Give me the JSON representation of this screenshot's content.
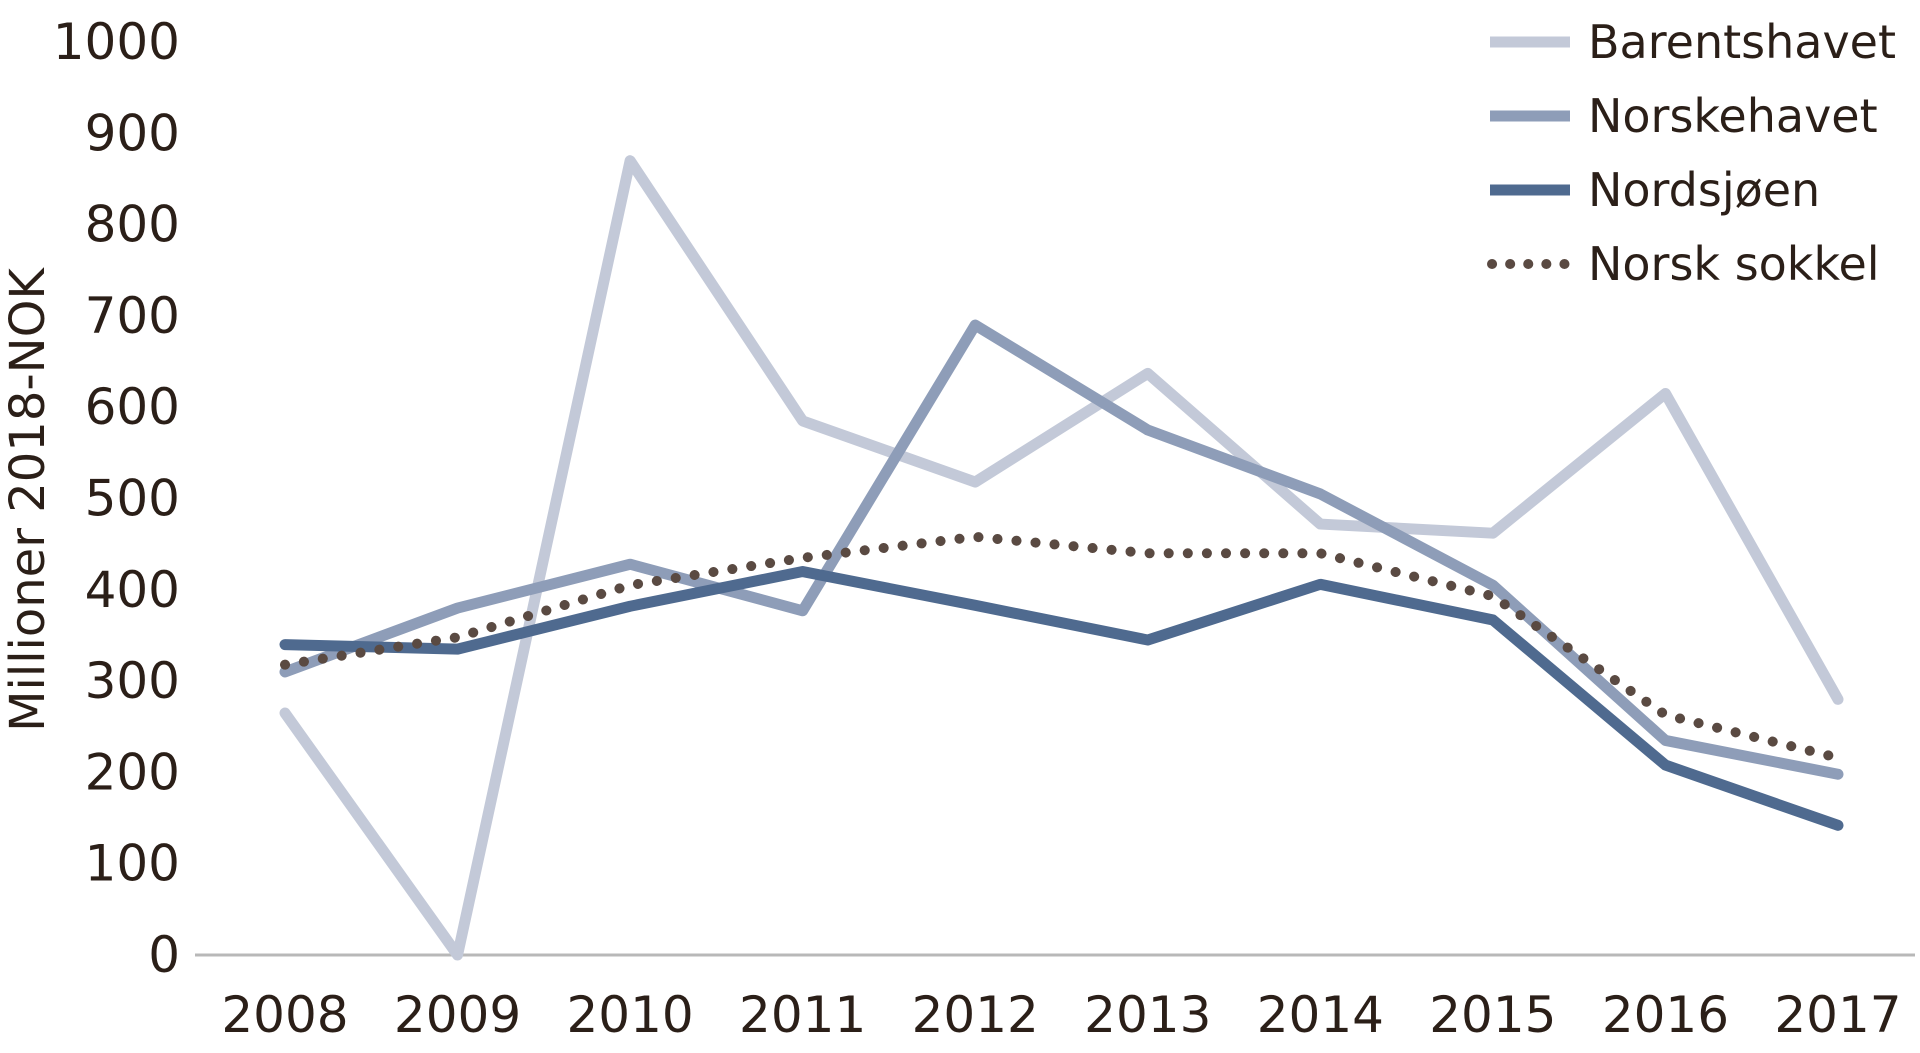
{
  "chart_data": {
    "type": "line",
    "title": "",
    "xlabel": "",
    "ylabel": "Millioner 2018-NOK",
    "ylim": [
      0,
      1000
    ],
    "yticks": [
      0,
      100,
      200,
      300,
      400,
      500,
      600,
      700,
      800,
      900,
      1000
    ],
    "grid": false,
    "legend_position": "top-right",
    "categories": [
      "2008",
      "2009",
      "2010",
      "2011",
      "2012",
      "2013",
      "2014",
      "2015",
      "2016",
      "2017"
    ],
    "series": [
      {
        "name": "Barentshavet",
        "color": "#c3c9d8",
        "style": "solid",
        "values": [
          265,
          0,
          870,
          585,
          518,
          637,
          472,
          462,
          615,
          280
        ]
      },
      {
        "name": "Norskehavet",
        "color": "#8e9db8",
        "style": "solid",
        "values": [
          310,
          380,
          428,
          377,
          690,
          575,
          505,
          405,
          235,
          198
        ]
      },
      {
        "name": "Nordsjøen",
        "color": "#4f6a8f",
        "style": "solid",
        "values": [
          340,
          335,
          382,
          420,
          383,
          345,
          406,
          367,
          208,
          142
        ]
      },
      {
        "name": "Norsk sokkel",
        "color": "#5a4a42",
        "style": "dotted",
        "values": [
          318,
          348,
          405,
          435,
          458,
          440,
          440,
          393,
          263,
          216
        ]
      }
    ]
  }
}
